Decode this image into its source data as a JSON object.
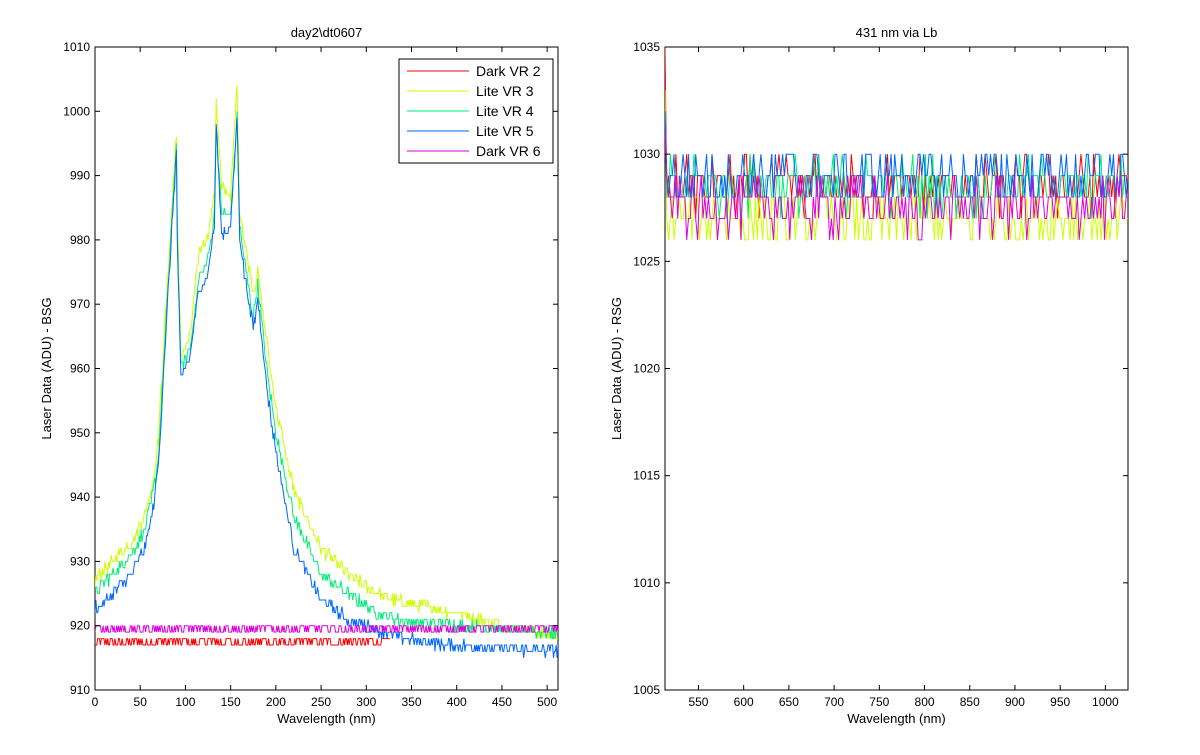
{
  "chart_data": [
    {
      "type": "line",
      "title": "day2\\dt0607",
      "xlabel": "Wavelength (nm)",
      "ylabel": "Laser Data (ADU) - BSG",
      "xlim": [
        0,
        512
      ],
      "ylim": [
        910,
        1010
      ],
      "xticks": [
        0,
        50,
        100,
        150,
        200,
        250,
        300,
        350,
        400,
        450,
        500
      ],
      "yticks": [
        910,
        920,
        930,
        940,
        950,
        960,
        970,
        980,
        990,
        1000,
        1010
      ],
      "grid": false,
      "legend_position": "top-right",
      "series": [
        {
          "name": "Dark VR 2",
          "color": "#ff0000",
          "x": [
            0,
            10,
            50,
            100,
            150,
            200,
            250,
            300,
            326
          ],
          "values": [
            917,
            917.5,
            917.5,
            917.5,
            917.5,
            917.5,
            917.5,
            917.5,
            917.5
          ]
        },
        {
          "name": "Lite VR 3",
          "color": "#ccff00",
          "x": [
            0,
            5,
            20,
            40,
            55,
            65,
            70,
            90,
            91,
            95,
            105,
            115,
            125,
            132,
            134,
            140,
            150,
            157,
            160,
            165,
            175,
            180,
            190,
            200,
            220,
            250,
            280,
            300,
            330,
            360,
            400,
            450,
            512
          ],
          "values": [
            927,
            928,
            930,
            933,
            937,
            943,
            949,
            997,
            984,
            962,
            965,
            978,
            981,
            987,
            1002,
            988,
            987,
            1004,
            985,
            980,
            972,
            975,
            964,
            954,
            941,
            932,
            928,
            926,
            924,
            923,
            922,
            920,
            918.5
          ]
        },
        {
          "name": "Lite VR 4",
          "color": "#00ee77",
          "x": [
            0,
            5,
            20,
            40,
            55,
            65,
            70,
            90,
            91,
            95,
            105,
            115,
            125,
            132,
            134,
            140,
            150,
            157,
            160,
            165,
            175,
            180,
            190,
            200,
            220,
            250,
            280,
            300,
            330,
            360,
            400,
            450,
            512
          ],
          "values": [
            925,
            926,
            928,
            931,
            935,
            941,
            946,
            995,
            981,
            960,
            963,
            974,
            977,
            984,
            998,
            984,
            984,
            999,
            982,
            977,
            968,
            973,
            960,
            950,
            937,
            928,
            925,
            923,
            921,
            920.5,
            920,
            919.5,
            919
          ]
        },
        {
          "name": "Lite VR 5",
          "color": "#0066ff",
          "x": [
            0,
            5,
            20,
            40,
            55,
            65,
            70,
            90,
            91,
            95,
            105,
            115,
            125,
            132,
            134,
            140,
            150,
            157,
            160,
            165,
            175,
            180,
            190,
            200,
            220,
            250,
            280,
            300,
            330,
            360,
            400,
            450,
            512
          ],
          "values": [
            923,
            923,
            925,
            928,
            932,
            939,
            945,
            994,
            980,
            958,
            962,
            972,
            975,
            982,
            998,
            981,
            982,
            999,
            981,
            975,
            966,
            971,
            957,
            947,
            932,
            924,
            921,
            920,
            918.5,
            917.5,
            917,
            916.5,
            916
          ]
        },
        {
          "name": "Dark VR 6",
          "color": "#dd00dd",
          "x": [
            0,
            10,
            50,
            100,
            150,
            200,
            250,
            300,
            350,
            400,
            450,
            512
          ],
          "values": [
            919.5,
            919.5,
            919.5,
            919.5,
            919.5,
            919.5,
            919.5,
            919.5,
            919.5,
            919.5,
            919.5,
            919.5
          ]
        }
      ]
    },
    {
      "type": "line",
      "title": "431 nm via Lb",
      "xlabel": "Wavelength (nm)",
      "ylabel": "Laser Data (ADU) - RSG",
      "xlim": [
        513,
        1025
      ],
      "ylim": [
        1005,
        1035
      ],
      "xticks": [
        550,
        600,
        650,
        700,
        750,
        800,
        850,
        900,
        950,
        1000
      ],
      "yticks": [
        1005,
        1010,
        1015,
        1020,
        1025,
        1030,
        1035
      ],
      "grid": false,
      "series": [
        {
          "color": "#ff0000",
          "x": [
            513,
            514,
            516,
            1025
          ],
          "values": [
            1034,
            1029,
            1028.5,
            1028.5
          ]
        },
        {
          "color": "#ccff00",
          "x": [
            513,
            515,
            1025
          ],
          "values": [
            1032,
            1027,
            1027
          ]
        },
        {
          "color": "#00ee77",
          "x": [
            513,
            515,
            1025
          ],
          "values": [
            1031,
            1028.5,
            1028.5
          ]
        },
        {
          "color": "#0066ff",
          "x": [
            513,
            515,
            1025
          ],
          "values": [
            1031,
            1029,
            1029
          ]
        },
        {
          "color": "#dd00dd",
          "x": [
            513,
            515,
            1025
          ],
          "values": [
            1030,
            1027.5,
            1027.5
          ]
        }
      ]
    }
  ]
}
